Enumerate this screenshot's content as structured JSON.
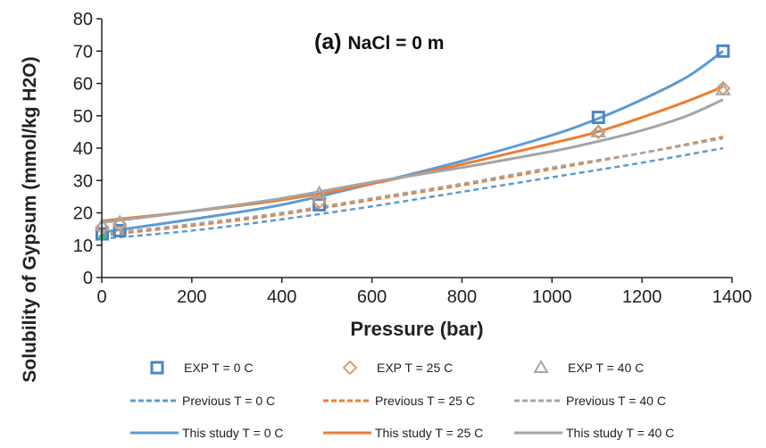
{
  "chart_data": {
    "type": "line",
    "title_label": "(a)",
    "title": "NaCl = 0 m",
    "xlabel": "Pressure (bar)",
    "ylabel": "Solubility of Gypsum (mmol/kg H2O)",
    "xlim": [
      0,
      1400
    ],
    "ylim": [
      0,
      80
    ],
    "xticks": [
      0,
      200,
      400,
      600,
      800,
      1000,
      1200,
      1400
    ],
    "yticks": [
      0,
      10,
      20,
      30,
      40,
      50,
      60,
      70,
      80
    ],
    "grid": false,
    "legend_position": "bottom",
    "series": [
      {
        "name": "EXP T = 0 C",
        "kind": "points",
        "marker": "square",
        "color": "#4a86c5",
        "x": [
          1,
          40,
          483,
          1103,
          1380
        ],
        "y": [
          13.5,
          14.5,
          22.5,
          49.5,
          70
        ]
      },
      {
        "name": "EXP T = 25 C",
        "kind": "points",
        "marker": "diamond",
        "color": "#e59a62",
        "x": [
          1,
          40,
          483,
          1103,
          1380
        ],
        "y": [
          15.5,
          16.5,
          23.5,
          45,
          58.5
        ]
      },
      {
        "name": "EXP T = 40 C",
        "kind": "points",
        "marker": "triangle",
        "color": "#a6a6a6",
        "x": [
          1,
          40,
          483,
          1103,
          1380
        ],
        "y": [
          16,
          17,
          26,
          45,
          58
        ]
      },
      {
        "name": "Previous T = 0 C",
        "kind": "line",
        "dash": true,
        "color": "#5b9bd5",
        "x": [
          0,
          200,
          400,
          600,
          800,
          1000,
          1200,
          1380
        ],
        "y": [
          12,
          14.5,
          18,
          22,
          26.5,
          31,
          35.5,
          40
        ]
      },
      {
        "name": "Previous T = 25 C",
        "kind": "line",
        "dash": true,
        "color": "#ed7d31",
        "x": [
          0,
          200,
          400,
          600,
          800,
          1000,
          1200,
          1380
        ],
        "y": [
          13,
          16,
          19.5,
          24,
          28.5,
          33.5,
          38.5,
          43.5
        ]
      },
      {
        "name": "Previous T = 40 C",
        "kind": "line",
        "dash": true,
        "color": "#a5a5a5",
        "x": [
          0,
          200,
          400,
          600,
          800,
          1000,
          1200,
          1380
        ],
        "y": [
          13.5,
          16.5,
          20,
          24.5,
          29,
          34,
          38.5,
          43
        ]
      },
      {
        "name": "This study T = 0 C",
        "kind": "line",
        "dash": false,
        "color": "#5b9bd5",
        "x": [
          0,
          200,
          400,
          600,
          800,
          1000,
          1100,
          1200,
          1300,
          1380
        ],
        "y": [
          14,
          18,
          22.5,
          29,
          36,
          44,
          49,
          55,
          62,
          70
        ]
      },
      {
        "name": "This study T = 25 C",
        "kind": "line",
        "dash": false,
        "color": "#ed7d31",
        "x": [
          0,
          200,
          400,
          600,
          800,
          1000,
          1100,
          1200,
          1300,
          1380
        ],
        "y": [
          17.5,
          20.5,
          24,
          29,
          35,
          41.5,
          45,
          49.5,
          54.5,
          59
        ]
      },
      {
        "name": "This study T = 40 C",
        "kind": "line",
        "dash": false,
        "color": "#a5a5a5",
        "x": [
          0,
          200,
          400,
          600,
          800,
          1000,
          1100,
          1200,
          1300,
          1380
        ],
        "y": [
          17,
          20.5,
          24.5,
          29.5,
          34,
          39,
          42,
          45.5,
          50,
          55
        ]
      }
    ]
  }
}
